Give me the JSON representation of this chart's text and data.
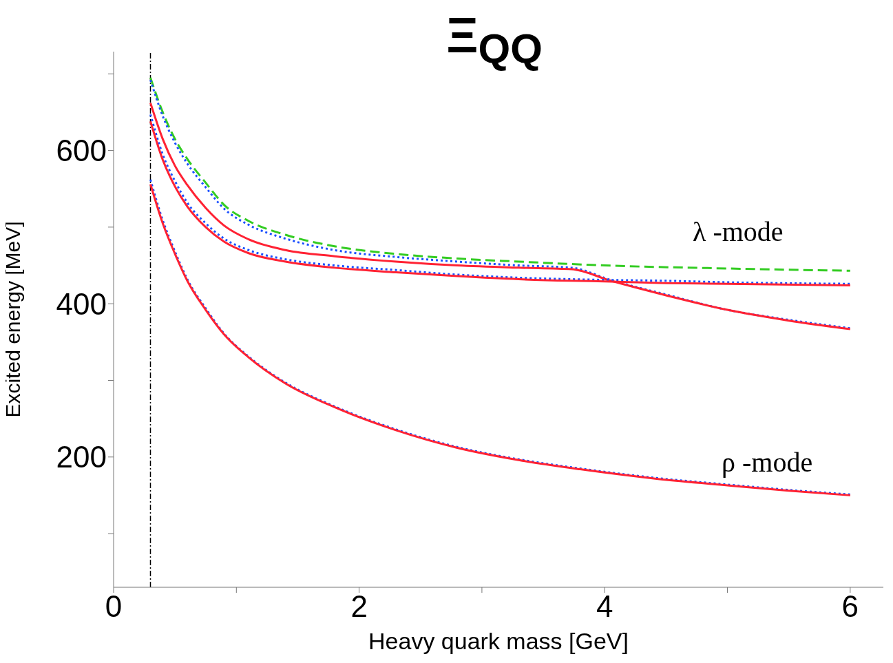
{
  "chart_data": {
    "type": "line",
    "title": "Ξ$_{QQ}$",
    "xlabel": "Heavy quark mass [GeV]",
    "ylabel": "Excited energy [MeV]",
    "xlim": [
      0,
      6.27
    ],
    "xticks": [
      0,
      {
        "value": 1,
        "label": null
      },
      2,
      {
        "value": 3,
        "label": null
      },
      4,
      {
        "value": 5,
        "label": null
      },
      6
    ],
    "ylim": [
      30,
      729
    ],
    "yticks": [
      {
        "value": 100,
        "label": null
      },
      200,
      {
        "value": 300,
        "label": null
      },
      400,
      {
        "value": 500,
        "label": null
      },
      600,
      {
        "value": 700,
        "label": null
      }
    ],
    "marker": "none",
    "series": [
      {
        "color": "#33cc22",
        "line_style": "dashed",
        "x": [
          0.3,
          0.4,
          0.5,
          0.6,
          0.75,
          0.9,
          1.1,
          1.4,
          1.8,
          2.3,
          2.8,
          3.3,
          4,
          5,
          6
        ],
        "values": [
          695,
          650,
          615,
          589,
          558,
          529,
          508,
          490,
          475,
          465,
          459,
          455,
          450,
          446,
          443
        ]
      },
      {
        "color": "#1a4fff",
        "line_style": "dotted",
        "x": [
          0.3,
          0.4,
          0.5,
          0.6,
          0.75,
          0.9,
          1.1,
          1.4,
          1.8,
          2.3,
          2.8,
          3.3,
          3.73,
          4.05,
          4.5,
          5,
          5.5,
          6
        ],
        "values": [
          692,
          645,
          610,
          583,
          552,
          524,
          503,
          485,
          470,
          461,
          455,
          450,
          447,
          431,
          412,
          392,
          379,
          368
        ]
      },
      {
        "color": "#ff2233",
        "line_style": "solid",
        "x": [
          0.3,
          0.4,
          0.5,
          0.6,
          0.75,
          0.9,
          1.1,
          1.4,
          1.8,
          2.3,
          2.8,
          3.3,
          3.73,
          4.05,
          4.5,
          5,
          5.5,
          6
        ],
        "values": [
          662,
          615,
          580,
          555,
          525,
          502,
          484,
          470,
          462,
          455,
          450,
          447,
          445,
          430,
          411,
          392,
          378,
          367
        ]
      },
      {
        "color": "#1a4fff",
        "line_style": "dotted",
        "x": [
          0.3,
          0.4,
          0.5,
          0.6,
          0.75,
          0.9,
          1.1,
          1.4,
          1.8,
          2.3,
          2.8,
          3.3,
          3.73,
          4.05,
          4.5,
          5,
          6
        ],
        "values": [
          647,
          595,
          560,
          532,
          505,
          485,
          470,
          458,
          450,
          444,
          438,
          434,
          432,
          431,
          430,
          428,
          426
        ]
      },
      {
        "color": "#ff2233",
        "line_style": "solid",
        "x": [
          0.3,
          0.4,
          0.5,
          0.6,
          0.75,
          0.9,
          1.1,
          1.4,
          1.8,
          2.3,
          2.8,
          3.3,
          3.73,
          4.05,
          4.5,
          5,
          6
        ],
        "values": [
          638,
          588,
          553,
          527,
          500,
          481,
          466,
          455,
          447,
          441,
          436,
          432,
          430,
          429,
          427,
          426,
          424
        ]
      },
      {
        "color": "#1a4fff",
        "line_style": "dotted",
        "x": [
          0.3,
          0.4,
          0.5,
          0.6,
          0.75,
          0.9,
          1.1,
          1.4,
          1.8,
          2.3,
          2.8,
          3.3,
          3.8,
          4.4,
          5,
          5.5,
          6
        ],
        "values": [
          562,
          509,
          468,
          432,
          394,
          361,
          331,
          297,
          266,
          236,
          213,
          197,
          185,
          173,
          164,
          157,
          151
        ]
      },
      {
        "color": "#ff2233",
        "line_style": "solid",
        "x": [
          0.3,
          0.4,
          0.5,
          0.6,
          0.75,
          0.9,
          1.1,
          1.4,
          1.8,
          2.3,
          2.8,
          3.3,
          3.8,
          4.4,
          5,
          5.5,
          6
        ],
        "values": [
          556,
          505,
          465,
          430,
          392,
          360,
          330,
          296,
          265,
          235,
          212,
          196,
          184,
          172,
          163,
          156,
          150
        ]
      }
    ],
    "ref_lines": [
      {
        "axis": "x",
        "value": 0.3,
        "color": "#000000",
        "line_style": "dashdot"
      }
    ],
    "annotations": [
      "λ -mode",
      "ρ -mode"
    ]
  }
}
